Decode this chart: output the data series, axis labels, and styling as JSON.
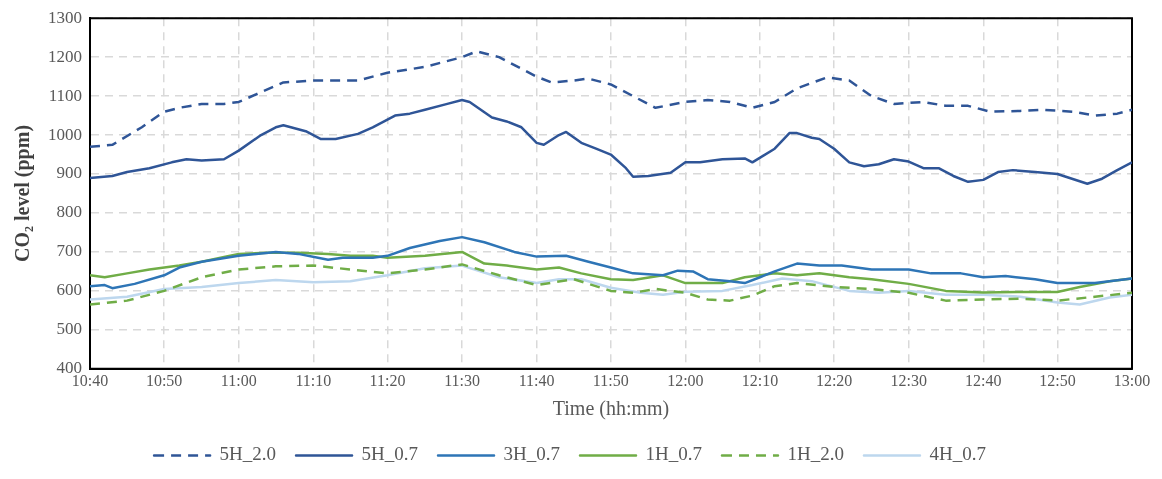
{
  "chart_data": {
    "type": "line",
    "xlabel": "Time (hh:mm)",
    "ylabel": "CO₂ level (ppm)",
    "xlim": [
      10.667,
      13
    ],
    "xticks": [
      {
        "value": 10.667,
        "label": "10:40"
      },
      {
        "value": 10.833,
        "label": "10:50"
      },
      {
        "value": 11,
        "label": "11:00"
      },
      {
        "value": 11.167,
        "label": "11:10"
      },
      {
        "value": 11.333,
        "label": "11:20"
      },
      {
        "value": 11.5,
        "label": "11:30"
      },
      {
        "value": 11.667,
        "label": "11:40"
      },
      {
        "value": 11.833,
        "label": "11:50"
      },
      {
        "value": 12,
        "label": "12:00"
      },
      {
        "value": 12.167,
        "label": "12:10"
      },
      {
        "value": 12.333,
        "label": "12:20"
      },
      {
        "value": 12.5,
        "label": "12:30"
      },
      {
        "value": 12.667,
        "label": "12:40"
      },
      {
        "value": 12.833,
        "label": "12:50"
      },
      {
        "value": 13,
        "label": "13:00"
      }
    ],
    "ylim": [
      400,
      1300
    ],
    "yticks": [
      400,
      500,
      600,
      700,
      800,
      900,
      1000,
      1100,
      1200,
      1300
    ],
    "grid": true,
    "legend": "bottom",
    "marker": "none",
    "series": [
      {
        "name": "5H_2.0",
        "color": "#2f5597",
        "line_style": "dashed",
        "x": [
          10.667,
          10.717,
          10.783,
          10.833,
          10.867,
          10.917,
          10.967,
          11,
          11.05,
          11.1,
          11.167,
          11.217,
          11.267,
          11.333,
          11.417,
          11.5,
          11.533,
          11.583,
          11.667,
          11.7,
          11.75,
          11.783,
          11.833,
          11.883,
          11.933,
          12,
          12.05,
          12.1,
          12.15,
          12.2,
          12.25,
          12.317,
          12.367,
          12.417,
          12.467,
          12.533,
          12.583,
          12.633,
          12.683,
          12.75,
          12.8,
          12.867,
          12.917,
          12.967,
          13
        ],
        "values": [
          970,
          975,
          1020,
          1060,
          1070,
          1080,
          1080,
          1085,
          1110,
          1135,
          1140,
          1140,
          1140,
          1160,
          1175,
          1200,
          1215,
          1200,
          1150,
          1135,
          1140,
          1145,
          1130,
          1100,
          1070,
          1085,
          1090,
          1085,
          1070,
          1085,
          1120,
          1148,
          1140,
          1100,
          1080,
          1085,
          1075,
          1075,
          1060,
          1062,
          1065,
          1060,
          1050,
          1055,
          1065
        ]
      },
      {
        "name": "5H_0.7",
        "color": "#2f5597",
        "line_style": "solid",
        "x": [
          10.667,
          10.717,
          10.75,
          10.8,
          10.85,
          10.883,
          10.917,
          10.967,
          11,
          11.05,
          11.083,
          11.1,
          11.15,
          11.183,
          11.217,
          11.267,
          11.3,
          11.35,
          11.383,
          11.417,
          11.467,
          11.5,
          11.517,
          11.567,
          11.6,
          11.633,
          11.667,
          11.683,
          11.717,
          11.733,
          11.767,
          11.8,
          11.833,
          11.867,
          11.883,
          11.917,
          11.967,
          12,
          12.033,
          12.083,
          12.133,
          12.15,
          12.2,
          12.233,
          12.25,
          12.283,
          12.3,
          12.333,
          12.367,
          12.4,
          12.433,
          12.467,
          12.5,
          12.533,
          12.567,
          12.6,
          12.633,
          12.667,
          12.7,
          12.733,
          12.783,
          12.833,
          12.9,
          12.933,
          12.967,
          13
        ],
        "values": [
          890,
          895,
          905,
          915,
          930,
          938,
          935,
          938,
          960,
          1000,
          1020,
          1025,
          1010,
          990,
          990,
          1003,
          1020,
          1050,
          1055,
          1065,
          1080,
          1090,
          1085,
          1045,
          1035,
          1020,
          980,
          975,
          1000,
          1008,
          980,
          965,
          950,
          915,
          893,
          895,
          903,
          930,
          930,
          938,
          940,
          930,
          965,
          1005,
          1005,
          993,
          990,
          965,
          930,
          920,
          925,
          938,
          932,
          915,
          915,
          895,
          880,
          885,
          905,
          910,
          905,
          900,
          875,
          888,
          910,
          930
        ]
      },
      {
        "name": "3H_0.7",
        "color": "#2e75b6",
        "line_style": "solid",
        "x": [
          10.667,
          10.7,
          10.717,
          10.767,
          10.833,
          10.867,
          10.917,
          11,
          11.083,
          11.133,
          11.2,
          11.233,
          11.3,
          11.333,
          11.383,
          11.45,
          11.5,
          11.55,
          11.617,
          11.667,
          11.733,
          11.783,
          11.833,
          11.883,
          11.95,
          11.983,
          12.017,
          12.05,
          12.1,
          12.133,
          12.167,
          12.2,
          12.25,
          12.3,
          12.35,
          12.417,
          12.5,
          12.55,
          12.617,
          12.667,
          12.717,
          12.783,
          12.833,
          12.917,
          13
        ],
        "values": [
          612,
          615,
          607,
          618,
          640,
          660,
          675,
          690,
          700,
          695,
          680,
          685,
          685,
          690,
          710,
          728,
          738,
          725,
          700,
          688,
          690,
          675,
          660,
          645,
          640,
          652,
          650,
          630,
          625,
          620,
          635,
          650,
          670,
          665,
          665,
          655,
          655,
          645,
          645,
          635,
          638,
          630,
          620,
          620,
          632
        ]
      },
      {
        "name": "1H_0.7",
        "color": "#70ad47",
        "line_style": "solid",
        "x": [
          10.667,
          10.7,
          10.75,
          10.8,
          10.867,
          10.917,
          11,
          11.067,
          11.133,
          11.2,
          11.25,
          11.3,
          11.333,
          11.417,
          11.5,
          11.55,
          11.6,
          11.667,
          11.717,
          11.767,
          11.833,
          11.883,
          11.95,
          12,
          12.083,
          12.133,
          12.2,
          12.25,
          12.3,
          12.367,
          12.417,
          12.5,
          12.583,
          12.667,
          12.75,
          12.833,
          12.883,
          12.95,
          13
        ],
        "values": [
          640,
          635,
          645,
          655,
          665,
          675,
          695,
          698,
          698,
          695,
          690,
          690,
          685,
          690,
          700,
          670,
          665,
          655,
          660,
          645,
          630,
          628,
          640,
          620,
          620,
          635,
          645,
          640,
          645,
          635,
          630,
          618,
          600,
          596,
          597,
          597,
          610,
          625,
          632
        ]
      },
      {
        "name": "1H_2.0",
        "color": "#70ad47",
        "line_style": "dashed",
        "x": [
          10.667,
          10.75,
          10.833,
          10.917,
          11,
          11.083,
          11.167,
          11.25,
          11.333,
          11.417,
          11.5,
          11.583,
          11.667,
          11.75,
          11.833,
          11.883,
          11.933,
          12,
          12.05,
          12.1,
          12.15,
          12.2,
          12.25,
          12.333,
          12.417,
          12.5,
          12.583,
          12.667,
          12.75,
          12.833,
          12.917,
          13
        ],
        "values": [
          565,
          575,
          600,
          635,
          655,
          663,
          665,
          655,
          645,
          655,
          668,
          640,
          615,
          630,
          600,
          595,
          605,
          595,
          578,
          575,
          588,
          612,
          620,
          610,
          605,
          595,
          575,
          578,
          580,
          575,
          585,
          595
        ]
      },
      {
        "name": "4H_0.7",
        "color": "#bdd7ee",
        "line_style": "solid",
        "x": [
          10.667,
          10.75,
          10.833,
          10.917,
          11,
          11.083,
          11.167,
          11.25,
          11.333,
          11.417,
          11.5,
          11.583,
          11.667,
          11.717,
          11.767,
          11.833,
          11.9,
          11.95,
          12,
          12.083,
          12.15,
          12.217,
          12.283,
          12.367,
          12.433,
          12.5,
          12.583,
          12.667,
          12.75,
          12.833,
          12.883,
          12.95,
          13
        ],
        "values": [
          578,
          585,
          605,
          610,
          620,
          628,
          622,
          625,
          640,
          658,
          665,
          635,
          620,
          630,
          630,
          608,
          595,
          590,
          598,
          600,
          615,
          632,
          625,
          600,
          595,
          600,
          590,
          590,
          585,
          570,
          565,
          583,
          590
        ]
      }
    ]
  }
}
